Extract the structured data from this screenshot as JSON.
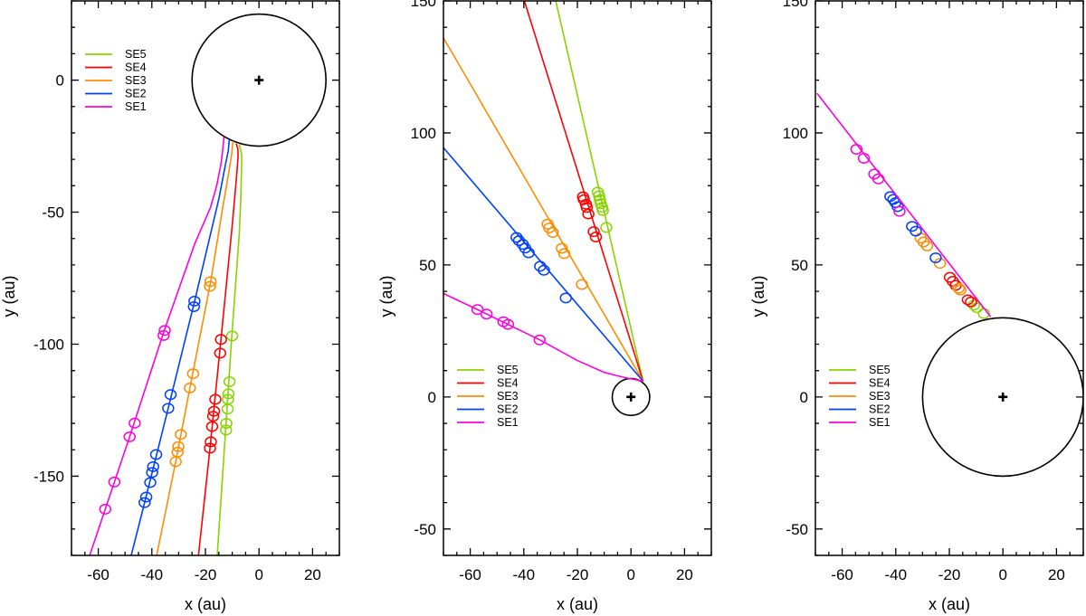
{
  "chart_data": [
    {
      "type": "line",
      "xlabel": "x (au)",
      "ylabel": "y (au)",
      "xlim": [
        -70,
        30
      ],
      "ylim": [
        -180,
        30
      ],
      "xticks": [
        -60,
        -40,
        -20,
        0,
        20
      ],
      "xtick_labels": [
        "-60",
        "-40",
        "-20",
        "0",
        "20"
      ],
      "yticks": [
        -150,
        -100,
        -50,
        0
      ],
      "ytick_labels": [
        "-150",
        "-100",
        "-50",
        "0"
      ],
      "grid": false,
      "legend": {
        "position": "top-left",
        "entries": [
          "SE5",
          "SE4",
          "SE3",
          "SE2",
          "SE1"
        ]
      },
      "circle": {
        "center": [
          0,
          0
        ],
        "radius": 25
      },
      "series": [
        {
          "name": "SE5",
          "color": "#88d400",
          "curve": [
            [
              -7.4,
              -24.3
            ],
            [
              -6.5,
              -28
            ],
            [
              -6.5,
              -31.8
            ],
            [
              -6.8,
              -45
            ],
            [
              -7.4,
              -58.7
            ],
            [
              -10.2,
              -97.5
            ],
            [
              -12.5,
              -133
            ],
            [
              -15.6,
              -180
            ]
          ],
          "markers": [
            [
              -10,
              -96.9
            ],
            [
              -11,
              -114.2
            ],
            [
              -11.4,
              -118.8
            ],
            [
              -11.6,
              -120.9
            ],
            [
              -11.7,
              -124.6
            ],
            [
              -12.2,
              -130
            ],
            [
              -12.3,
              -132.5
            ]
          ]
        },
        {
          "name": "SE4",
          "color": "#ff0000",
          "curve": [
            [
              -8.5,
              -24
            ],
            [
              -7.9,
              -26
            ],
            [
              -7.8,
              -28.8
            ],
            [
              -8.5,
              -38
            ],
            [
              -10,
              -55
            ],
            [
              -14.2,
              -98.2
            ],
            [
              -18.3,
              -139.4
            ],
            [
              -22.6,
              -180
            ]
          ],
          "markers": [
            [
              -14.2,
              -98.2
            ],
            [
              -14.5,
              -103.4
            ],
            [
              -16.3,
              -120.9
            ],
            [
              -16.8,
              -125.4
            ],
            [
              -17.1,
              -127.3
            ],
            [
              -17.5,
              -131.2
            ],
            [
              -18,
              -137
            ],
            [
              -18.3,
              -139.4
            ]
          ]
        },
        {
          "name": "SE3",
          "color": "#ff8c00",
          "curve": [
            [
              -9.7,
              -23.1
            ],
            [
              -10.2,
              -28
            ],
            [
              -11.3,
              -35
            ],
            [
              -13.5,
              -48
            ],
            [
              -18.1,
              -76.6
            ],
            [
              -25.8,
              -116.6
            ],
            [
              -31.1,
              -144.5
            ],
            [
              -38.2,
              -180
            ]
          ],
          "markers": [
            [
              -18.1,
              -76.3
            ],
            [
              -18.3,
              -78.1
            ],
            [
              -24.6,
              -111.2
            ],
            [
              -25.8,
              -116.6
            ],
            [
              -29.2,
              -134.2
            ],
            [
              -30.1,
              -138.8
            ],
            [
              -30.4,
              -140.9
            ],
            [
              -31.1,
              -144.5
            ]
          ]
        },
        {
          "name": "SE2",
          "color": "#0040ff",
          "curve": [
            [
              -11.1,
              -22.5
            ],
            [
              -11.5,
              -27
            ],
            [
              -12.5,
              -31.8
            ],
            [
              -15,
              -45
            ],
            [
              -24.1,
              -84
            ],
            [
              -33.9,
              -124.3
            ],
            [
              -42.7,
              -160
            ],
            [
              -47.7,
              -180
            ]
          ],
          "markers": [
            [
              -24.1,
              -83.7
            ],
            [
              -24.3,
              -85.8
            ],
            [
              -33,
              -119.1
            ],
            [
              -33.9,
              -124.3
            ],
            [
              -38.4,
              -141.8
            ],
            [
              -39.5,
              -146.4
            ],
            [
              -39.9,
              -148.6
            ],
            [
              -40.6,
              -152.4
            ],
            [
              -42.1,
              -157.9
            ],
            [
              -42.7,
              -160
            ]
          ]
        },
        {
          "name": "SE1",
          "color": "#ff00dd",
          "curve": [
            [
              -13.1,
              -21.6
            ],
            [
              -13.5,
              -26
            ],
            [
              -14.2,
              -31.8
            ],
            [
              -15.8,
              -40
            ],
            [
              -18.1,
              -48.2
            ],
            [
              -24,
              -62
            ],
            [
              -35.4,
              -94.9
            ],
            [
              -48.3,
              -135.1
            ],
            [
              -57.4,
              -162.5
            ],
            [
              -63.2,
              -180
            ]
          ],
          "markers": [
            [
              -35.2,
              -94.8
            ],
            [
              -35.6,
              -96.7
            ],
            [
              -46.4,
              -129.9
            ],
            [
              -48.3,
              -135.1
            ],
            [
              -54,
              -152.2
            ],
            [
              -57.4,
              -162.5
            ]
          ]
        }
      ]
    },
    {
      "type": "line",
      "xlabel": "x (au)",
      "ylabel": "y (au)",
      "xlim": [
        -70,
        30
      ],
      "ylim": [
        -60,
        150
      ],
      "xticks": [
        -60,
        -40,
        -20,
        0,
        20
      ],
      "xtick_labels": [
        "-60",
        "-40",
        "-20",
        "0",
        "20"
      ],
      "yticks": [
        -50,
        0,
        50,
        100,
        150
      ],
      "ytick_labels": [
        "-50",
        "0",
        "50",
        "100",
        "150"
      ],
      "grid": false,
      "legend": {
        "position": "bottom-left",
        "entries": [
          "SE5",
          "SE4",
          "SE3",
          "SE2",
          "SE1"
        ]
      },
      "circle": {
        "center": [
          0,
          0
        ],
        "radius": 7
      },
      "series": [
        {
          "name": "SE5",
          "color": "#88d400",
          "curve": [
            [
              4.5,
              6
            ],
            [
              -28.3,
              151
            ]
          ],
          "markers": [
            [
              -12.4,
              77.6
            ],
            [
              -11.9,
              76.2
            ],
            [
              -11.6,
              74.7
            ],
            [
              -11.3,
              73.2
            ],
            [
              -10.8,
              71.8
            ],
            [
              -10.5,
              70.6
            ],
            [
              -9.2,
              64.2
            ]
          ]
        },
        {
          "name": "SE4",
          "color": "#ff0000",
          "curve": [
            [
              4.5,
              6
            ],
            [
              -40.1,
              151
            ]
          ],
          "markers": [
            [
              -17.9,
              75.8
            ],
            [
              -17.6,
              74.7
            ],
            [
              -16.8,
              73
            ],
            [
              -16.5,
              71.8
            ],
            [
              -15.9,
              69.3
            ],
            [
              -13.9,
              62.6
            ],
            [
              -13.1,
              60.6
            ]
          ]
        },
        {
          "name": "SE3",
          "color": "#ff8c00",
          "curve": [
            [
              4.5,
              6
            ],
            [
              -70,
              136
            ]
          ],
          "markers": [
            [
              -31.1,
              65.5
            ],
            [
              -30.5,
              64
            ],
            [
              -29.2,
              62.3
            ],
            [
              -25.8,
              56.3
            ],
            [
              -24.9,
              54.3
            ],
            [
              -18.3,
              42.6
            ]
          ]
        },
        {
          "name": "SE2",
          "color": "#0040ff",
          "curve": [
            [
              4.5,
              6
            ],
            [
              -70,
              94.4
            ]
          ],
          "markers": [
            [
              -42.7,
              60.4
            ],
            [
              -41.8,
              59.2
            ],
            [
              -40.4,
              57.8
            ],
            [
              -39.5,
              56.4
            ],
            [
              -38.2,
              54.6
            ],
            [
              -33.9,
              49.5
            ],
            [
              -32.5,
              48
            ],
            [
              -24.3,
              37.5
            ]
          ]
        },
        {
          "name": "SE1",
          "color": "#ff00dd",
          "curve": [
            [
              4.5,
              6
            ],
            [
              -1.2,
              7.1
            ],
            [
              -5,
              8
            ],
            [
              -10.2,
              9.4
            ],
            [
              -20,
              13.8
            ],
            [
              -34,
              21.6
            ],
            [
              -57.3,
              33.1
            ],
            [
              -70,
              39.2
            ]
          ],
          "markers": [
            [
              -57.3,
              33.1
            ],
            [
              -53.9,
              31.4
            ],
            [
              -47.6,
              28.5
            ],
            [
              -45.9,
              27.5
            ],
            [
              -34.1,
              21.6
            ]
          ]
        }
      ]
    },
    {
      "type": "line",
      "xlabel": "x (au)",
      "ylabel": "y (au)",
      "xlim": [
        -70,
        30
      ],
      "ylim": [
        -60,
        150
      ],
      "xticks": [
        -60,
        -40,
        -20,
        0,
        20
      ],
      "xtick_labels": [
        "-60",
        "-40",
        "-20",
        "0",
        "20"
      ],
      "yticks": [
        -50,
        0,
        50,
        100,
        150
      ],
      "ytick_labels": [
        "-50",
        "0",
        "50",
        "100",
        "150"
      ],
      "grid": false,
      "legend": {
        "position": "bottom-left",
        "entries": [
          "SE5",
          "SE4",
          "SE3",
          "SE2",
          "SE1"
        ]
      },
      "circle": {
        "center": [
          0,
          0
        ],
        "radius": 30
      },
      "series": [
        {
          "name": "SE5",
          "color": "#88d400",
          "curve": [],
          "markers": [
            [
              -10.8,
              34.8
            ],
            [
              -9.7,
              33.8
            ],
            [
              -7.1,
              31.6
            ]
          ]
        },
        {
          "name": "SE4",
          "color": "#ff0000",
          "curve": [],
          "markers": [
            [
              -19.8,
              45.3
            ],
            [
              -18.7,
              43.8
            ],
            [
              -17.6,
              42.3
            ],
            [
              -13.1,
              36.8
            ],
            [
              -11.9,
              36
            ]
          ]
        },
        {
          "name": "SE3",
          "color": "#ff8c00",
          "curve": [],
          "markers": [
            [
              -30.7,
              60.2
            ],
            [
              -29.6,
              58.7
            ],
            [
              -28.3,
              57.2
            ],
            [
              -23.5,
              50.6
            ],
            [
              -16.5,
              41.2
            ],
            [
              -15.9,
              40.5
            ]
          ]
        },
        {
          "name": "SE2",
          "color": "#0040ff",
          "curve": [],
          "markers": [
            [
              -42,
              75.9
            ],
            [
              -40.9,
              74.8
            ],
            [
              -40.1,
              73.6
            ],
            [
              -39.3,
              72.1
            ],
            [
              -33.9,
              64.6
            ],
            [
              -32.5,
              62.8
            ],
            [
              -25.1,
              52.7
            ]
          ]
        },
        {
          "name": "SE1",
          "color": "#ff00dd",
          "curve": [
            [
              -4.6,
              30.4
            ],
            [
              -69.4,
              115
            ]
          ],
          "markers": [
            [
              -54.7,
              93.8
            ],
            [
              -51.9,
              90.4
            ],
            [
              -48,
              84.4
            ],
            [
              -46.5,
              82.6
            ],
            [
              -38.6,
              70.3
            ]
          ]
        }
      ]
    }
  ]
}
